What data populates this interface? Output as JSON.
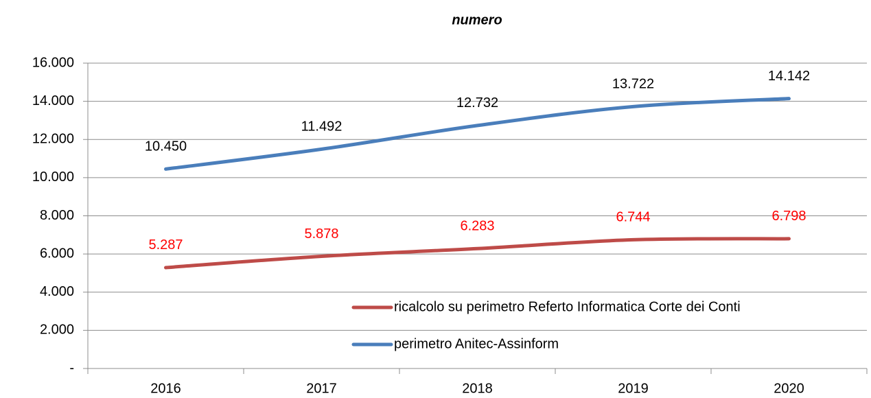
{
  "chart_data": {
    "type": "line",
    "title": "numero",
    "categories": [
      "2016",
      "2017",
      "2018",
      "2019",
      "2020"
    ],
    "series": [
      {
        "name": "ricalcolo su perimetro Referto Informatica Corte dei Conti",
        "color": "#be4b48",
        "label_color": "#ff0000",
        "values": [
          5287,
          5878,
          6283,
          6744,
          6798
        ],
        "value_labels": [
          "5.287",
          "5.878",
          "6.283",
          "6.744",
          "6.798"
        ]
      },
      {
        "name": "perimetro Anitec-Assinform",
        "color": "#4a7ebb",
        "label_color": "#000000",
        "values": [
          10450,
          11492,
          12732,
          13722,
          14142
        ],
        "value_labels": [
          "10.450",
          "11.492",
          "12.732",
          "13.722",
          "14.142"
        ]
      }
    ],
    "ylim": [
      0,
      16000
    ],
    "yticks": [
      {
        "value": 0,
        "label": "-"
      },
      {
        "value": 2000,
        "label": "2.000"
      },
      {
        "value": 4000,
        "label": "4.000"
      },
      {
        "value": 6000,
        "label": "6.000"
      },
      {
        "value": 8000,
        "label": "8.000"
      },
      {
        "value": 10000,
        "label": "10.000"
      },
      {
        "value": 12000,
        "label": "12.000"
      },
      {
        "value": 14000,
        "label": "14.000"
      },
      {
        "value": 16000,
        "label": "16.000"
      }
    ],
    "grid": true,
    "smooth": true,
    "legend": "lower right"
  }
}
